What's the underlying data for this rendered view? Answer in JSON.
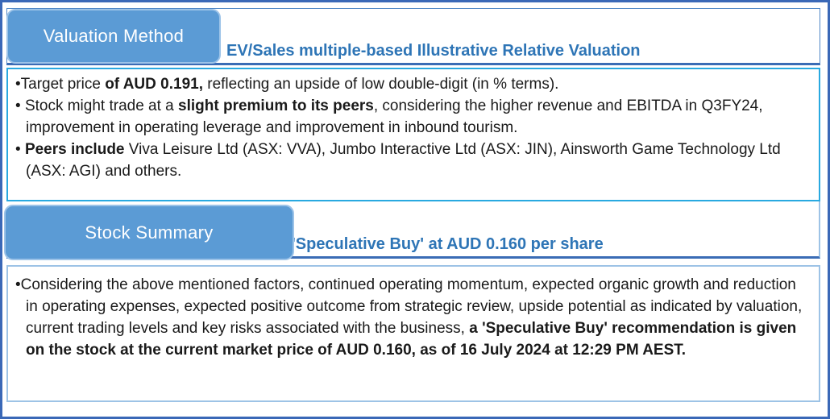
{
  "colors": {
    "outer_border": "#3A68B7",
    "header_border": "#4E86C6",
    "header_underline": "#3A6CB5",
    "box1_border": "#29A9E0",
    "box2_border": "#9DC3E6",
    "tab_fill": "#5B9BD5",
    "tab_rim": "#9CC3E8",
    "tab_text": "#FFFFFF",
    "title_text": "#2E75B6",
    "body_text": "#1A1A1A"
  },
  "sections": [
    {
      "tab_label": "Valuation Method",
      "title": "EV/Sales multiple-based Illustrative Relative Valuation",
      "bullets": [
        {
          "marker": "•",
          "segments": [
            {
              "t": "Target price ",
              "b": false
            },
            {
              "t": "of AUD 0.191,",
              "b": true
            },
            {
              "t": " reflecting an upside of low double-digit (in % terms).",
              "b": false
            }
          ]
        },
        {
          "marker": "• ",
          "segments": [
            {
              "t": "Stock might trade at a ",
              "b": false
            },
            {
              "t": "slight premium to its peers",
              "b": true
            },
            {
              "t": ", considering the higher revenue and EBITDA in Q3FY24, improvement in operating leverage and improvement in inbound tourism.",
              "b": false
            }
          ]
        },
        {
          "marker": "• ",
          "segments": [
            {
              "t": "Peers include",
              "b": true
            },
            {
              "t": " Viva Leisure Ltd (ASX: VVA), Jumbo Interactive Ltd (ASX: JIN), Ainsworth Game Technology Ltd (ASX: AGI) and others.",
              "b": false
            }
          ]
        }
      ]
    },
    {
      "tab_label": "Stock Summary",
      "title": "'Speculative Buy' at AUD 0.160 per share",
      "bullets": [
        {
          "marker": "•",
          "segments": [
            {
              "t": "Considering the above mentioned factors, continued operating momentum, expected organic growth and reduction in operating expenses, expected positive outcome from strategic review, upside potential as indicated by valuation, current trading levels and key risks associated with the business, ",
              "b": false
            },
            {
              "t": "a 'Speculative Buy' recommendation is given on the stock at the current market price of AUD 0.160, as of 16 July 2024 at 12:29 PM AEST.",
              "b": true
            }
          ]
        }
      ]
    }
  ]
}
